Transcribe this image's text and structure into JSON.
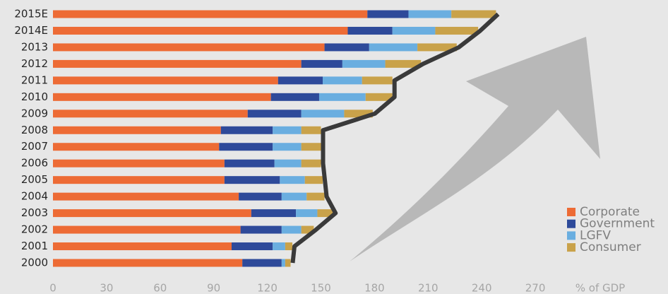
{
  "chart_data": {
    "type": "stacked-bar-horizontal",
    "categories": [
      "2000",
      "2001",
      "2002",
      "2003",
      "2004",
      "2005",
      "2006",
      "2007",
      "2008",
      "2009",
      "2010",
      "2011",
      "2012",
      "2013",
      "2014E",
      "2015E"
    ],
    "series": [
      {
        "name": "Corporate",
        "color": "#ed6b35",
        "values": [
          106,
          100,
          105,
          111,
          104,
          96,
          96,
          93,
          94,
          109,
          122,
          126,
          139,
          152,
          165,
          176
        ]
      },
      {
        "name": "Government",
        "color": "#2e4a9a",
        "values": [
          22,
          23,
          23,
          25,
          24,
          31,
          28,
          30,
          29,
          30,
          27,
          25,
          23,
          25,
          25,
          23
        ]
      },
      {
        "name": "LGFV",
        "color": "#6aaee0",
        "values": [
          2,
          7,
          11,
          12,
          14,
          14,
          15,
          16,
          16,
          24,
          26,
          22,
          24,
          27,
          24,
          24
        ]
      },
      {
        "name": "Consumer",
        "color": "#c9a24a",
        "values": [
          3,
          4,
          7,
          9,
          10,
          10,
          11,
          11,
          11,
          16,
          15,
          17,
          20,
          22,
          24,
          25
        ]
      }
    ],
    "xlabel": "% of GDP",
    "xlim": [
      0,
      300
    ],
    "xticks": [
      0,
      30,
      60,
      90,
      120,
      150,
      180,
      210,
      240,
      270
    ],
    "legend": "bottom-right"
  }
}
